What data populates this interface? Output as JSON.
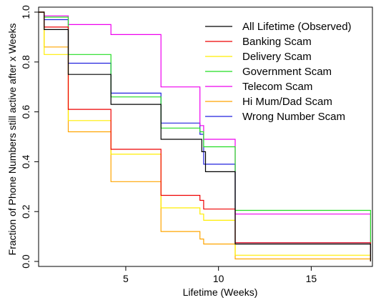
{
  "chart_data": {
    "type": "line",
    "step": true,
    "title": "",
    "xlabel": "Lifetime (Weeks)",
    "ylabel": "Fraction of Phone Numbers still active after x Weeks",
    "xlim": [
      0.3,
      18.3
    ],
    "ylim": [
      -0.02,
      1.02
    ],
    "x_ticks": [
      5,
      10,
      15
    ],
    "y_ticks": [
      0.0,
      0.2,
      0.4,
      0.6,
      0.8,
      1.0
    ],
    "y_tick_labels": [
      "0.0",
      "0.2",
      "0.4",
      "0.6",
      "0.8",
      "1.0"
    ],
    "grid": false,
    "legend_position": "top-right",
    "series": [
      {
        "name": "All Lifetime (Observed)",
        "color": "#000000",
        "points": [
          [
            0.3,
            1.0
          ],
          [
            0.6,
            1.0
          ],
          [
            0.6,
            0.93
          ],
          [
            1.9,
            0.93
          ],
          [
            1.9,
            0.75
          ],
          [
            4.2,
            0.75
          ],
          [
            4.2,
            0.63
          ],
          [
            6.9,
            0.63
          ],
          [
            6.9,
            0.49
          ],
          [
            9.1,
            0.49
          ],
          [
            9.1,
            0.44
          ],
          [
            9.3,
            0.44
          ],
          [
            9.3,
            0.36
          ],
          [
            10.9,
            0.36
          ],
          [
            10.9,
            0.07
          ],
          [
            18.2,
            0.07
          ],
          [
            18.2,
            0.0
          ]
        ]
      },
      {
        "name": "Banking Scam",
        "color": "#ee0000",
        "points": [
          [
            0.3,
            1.0
          ],
          [
            0.6,
            1.0
          ],
          [
            0.6,
            0.94
          ],
          [
            1.9,
            0.94
          ],
          [
            1.9,
            0.61
          ],
          [
            4.2,
            0.61
          ],
          [
            4.2,
            0.45
          ],
          [
            6.9,
            0.45
          ],
          [
            6.9,
            0.265
          ],
          [
            9.0,
            0.265
          ],
          [
            9.0,
            0.245
          ],
          [
            9.2,
            0.245
          ],
          [
            9.2,
            0.21
          ],
          [
            10.9,
            0.21
          ],
          [
            10.9,
            0.075
          ],
          [
            18.2,
            0.075
          ],
          [
            18.2,
            0.0
          ]
        ]
      },
      {
        "name": "Delivery Scam",
        "color": "#ffee00",
        "points": [
          [
            0.3,
            1.0
          ],
          [
            0.6,
            1.0
          ],
          [
            0.6,
            0.83
          ],
          [
            1.9,
            0.83
          ],
          [
            1.9,
            0.565
          ],
          [
            4.2,
            0.565
          ],
          [
            4.2,
            0.43
          ],
          [
            6.9,
            0.43
          ],
          [
            6.9,
            0.215
          ],
          [
            9.0,
            0.215
          ],
          [
            9.0,
            0.19
          ],
          [
            9.2,
            0.19
          ],
          [
            9.2,
            0.165
          ],
          [
            10.9,
            0.165
          ],
          [
            10.9,
            0.025
          ],
          [
            18.2,
            0.025
          ],
          [
            18.2,
            0.0
          ]
        ]
      },
      {
        "name": "Government Scam",
        "color": "#22dd22",
        "points": [
          [
            0.3,
            1.0
          ],
          [
            0.6,
            1.0
          ],
          [
            0.6,
            0.98
          ],
          [
            1.9,
            0.98
          ],
          [
            1.9,
            0.83
          ],
          [
            4.2,
            0.83
          ],
          [
            4.2,
            0.66
          ],
          [
            6.9,
            0.66
          ],
          [
            6.9,
            0.535
          ],
          [
            9.0,
            0.535
          ],
          [
            9.0,
            0.52
          ],
          [
            9.2,
            0.52
          ],
          [
            9.2,
            0.46
          ],
          [
            10.9,
            0.46
          ],
          [
            10.9,
            0.205
          ],
          [
            18.2,
            0.205
          ],
          [
            18.2,
            0.0
          ]
        ]
      },
      {
        "name": "Telecom Scam",
        "color": "#ee00ee",
        "points": [
          [
            0.3,
            1.0
          ],
          [
            0.6,
            1.0
          ],
          [
            0.6,
            0.985
          ],
          [
            1.9,
            0.985
          ],
          [
            1.9,
            0.95
          ],
          [
            4.2,
            0.95
          ],
          [
            4.2,
            0.91
          ],
          [
            6.9,
            0.91
          ],
          [
            6.9,
            0.7
          ],
          [
            9.0,
            0.7
          ],
          [
            9.0,
            0.545
          ],
          [
            9.2,
            0.545
          ],
          [
            9.2,
            0.49
          ],
          [
            10.9,
            0.49
          ],
          [
            10.9,
            0.19
          ],
          [
            18.2,
            0.19
          ],
          [
            18.2,
            0.0
          ]
        ]
      },
      {
        "name": "Hi Mum/Dad Scam",
        "color": "#ffa500",
        "points": [
          [
            0.3,
            1.0
          ],
          [
            0.6,
            1.0
          ],
          [
            0.6,
            0.86
          ],
          [
            1.9,
            0.86
          ],
          [
            1.9,
            0.52
          ],
          [
            4.2,
            0.52
          ],
          [
            4.2,
            0.32
          ],
          [
            6.9,
            0.32
          ],
          [
            6.9,
            0.12
          ],
          [
            9.0,
            0.12
          ],
          [
            9.0,
            0.09
          ],
          [
            9.2,
            0.09
          ],
          [
            9.2,
            0.07
          ],
          [
            10.9,
            0.07
          ],
          [
            10.9,
            0.01
          ],
          [
            18.2,
            0.01
          ],
          [
            18.2,
            0.0
          ]
        ]
      },
      {
        "name": "Wrong Number Scam",
        "color": "#2222dd",
        "points": [
          [
            0.3,
            1.0
          ],
          [
            0.6,
            1.0
          ],
          [
            0.6,
            0.97
          ],
          [
            1.9,
            0.97
          ],
          [
            1.9,
            0.795
          ],
          [
            4.2,
            0.795
          ],
          [
            4.2,
            0.675
          ],
          [
            6.9,
            0.675
          ],
          [
            6.9,
            0.555
          ],
          [
            9.0,
            0.555
          ],
          [
            9.0,
            0.51
          ],
          [
            9.2,
            0.51
          ],
          [
            9.2,
            0.39
          ],
          [
            10.9,
            0.39
          ],
          [
            10.9,
            0.075
          ],
          [
            18.2,
            0.075
          ],
          [
            18.2,
            0.0
          ]
        ]
      }
    ]
  }
}
